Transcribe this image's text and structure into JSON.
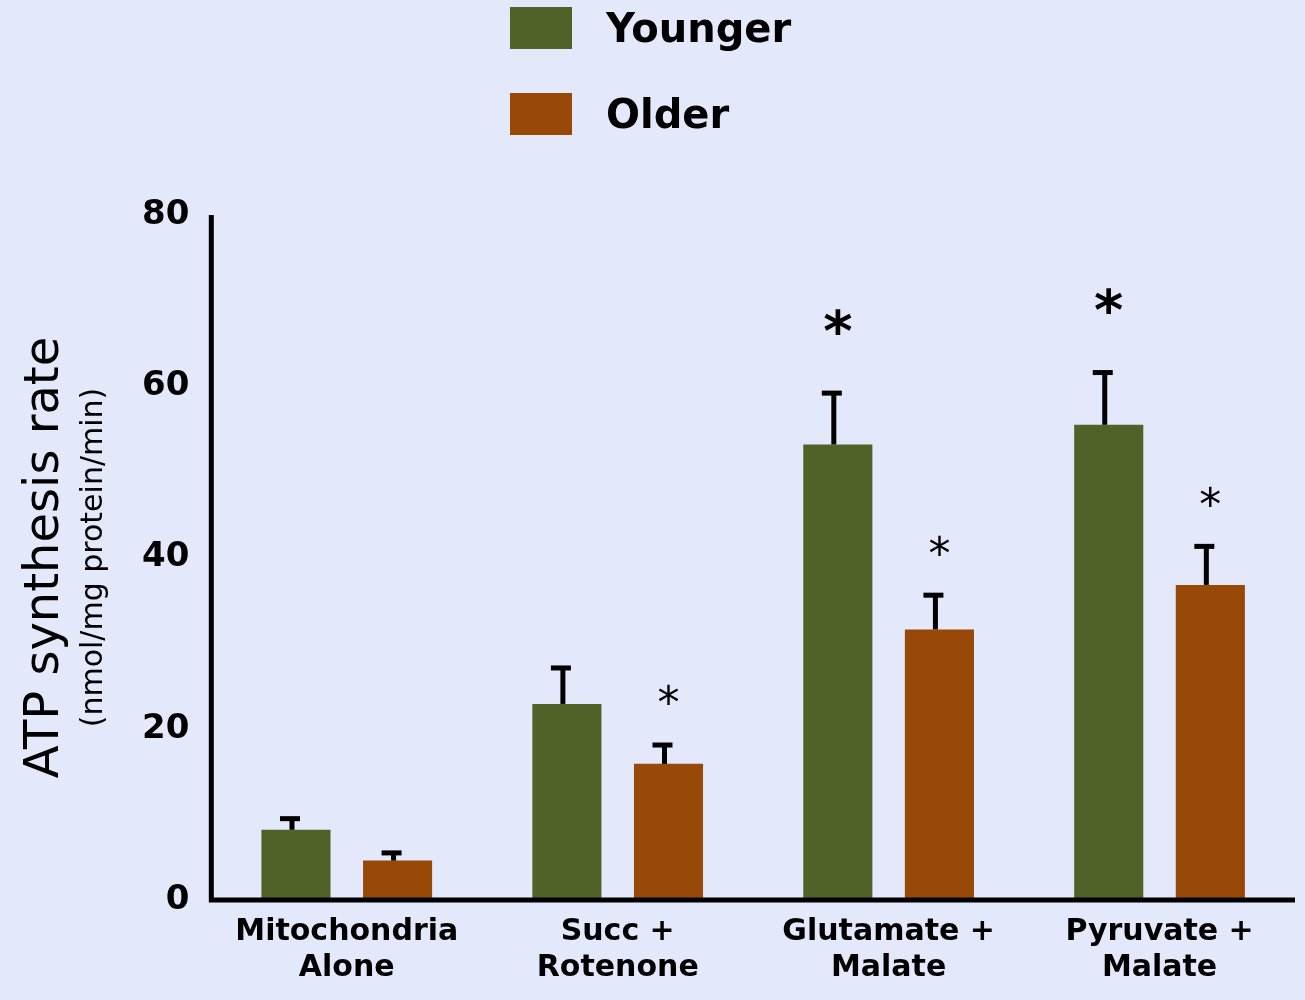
{
  "chart_data": {
    "type": "bar",
    "ylabel": "ATP synthesis rate\n(nmol/mg protein/min)",
    "categories": [
      "Mitochondria Alone",
      "Succ + Rotenone",
      "Glutamate + Malate",
      "Pyruvate + Malate"
    ],
    "series": [
      {
        "name": "Younger",
        "color": "#4f6228",
        "values": [
          8.2,
          22.9,
          53.2,
          55.5
        ],
        "errors": [
          [
            8.2,
            9.5
          ],
          [
            22.9,
            27.1
          ],
          [
            53.2,
            59.2
          ],
          [
            55.5,
            61.6
          ]
        ]
      },
      {
        "name": "Older",
        "color": "#984807",
        "values": [
          4.6,
          15.9,
          31.6,
          36.8
        ],
        "errors": [
          [
            4.6,
            5.5
          ],
          [
            15.9,
            18.1
          ],
          [
            31.6,
            35.6
          ],
          [
            36.8,
            41.3
          ]
        ]
      }
    ],
    "annotations": [
      "*",
      "*",
      "*",
      "*",
      "*"
    ],
    "ylim": [
      0,
      80
    ],
    "yticks": [
      0,
      20,
      40,
      60,
      80
    ],
    "grid": false,
    "legend": "top"
  }
}
